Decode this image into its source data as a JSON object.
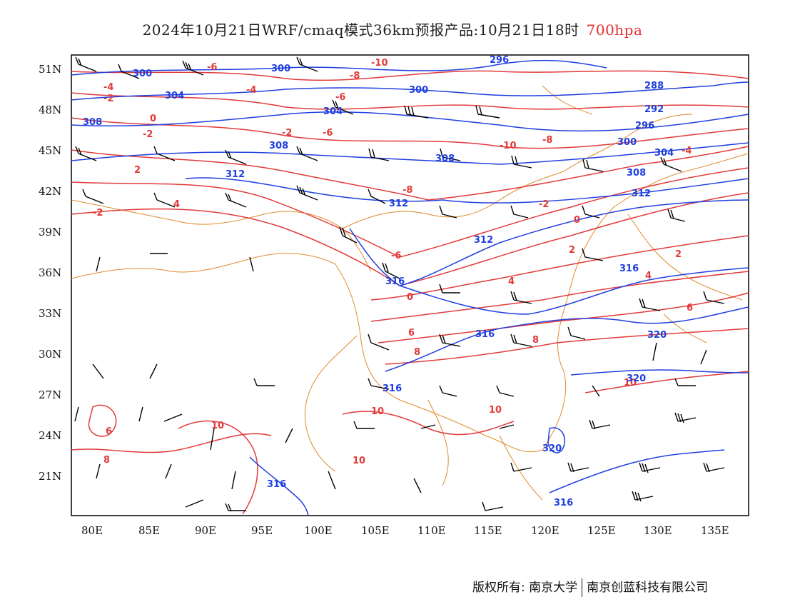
{
  "title": {
    "main": "2024年10月21日WRF/cmaq模式36km预报产品:10月21日18时",
    "level": "700hpa"
  },
  "axes": {
    "lat_labels": [
      "51N",
      "48N",
      "45N",
      "42N",
      "39N",
      "36N",
      "33N",
      "30N",
      "27N",
      "24N",
      "21N"
    ],
    "lon_labels": [
      "80E",
      "85E",
      "90E",
      "95E",
      "100E",
      "105E",
      "110E",
      "115E",
      "120E",
      "125E",
      "130E",
      "135E"
    ]
  },
  "colors": {
    "temperature": "#e23a3a",
    "geopotential": "#1f3fe0",
    "border": "#e08a2a",
    "wind": "#000000"
  },
  "temperature_labels": [
    "-10",
    "-8",
    "-6",
    "-4",
    "-2",
    "0",
    "2",
    "4",
    "6",
    "8",
    "10"
  ],
  "height_labels": [
    "288",
    "292",
    "296",
    "300",
    "304",
    "308",
    "312",
    "316",
    "320"
  ],
  "footer": {
    "left": "版权所有: 南京大学",
    "right": "南京创蓝科技有限公司"
  }
}
